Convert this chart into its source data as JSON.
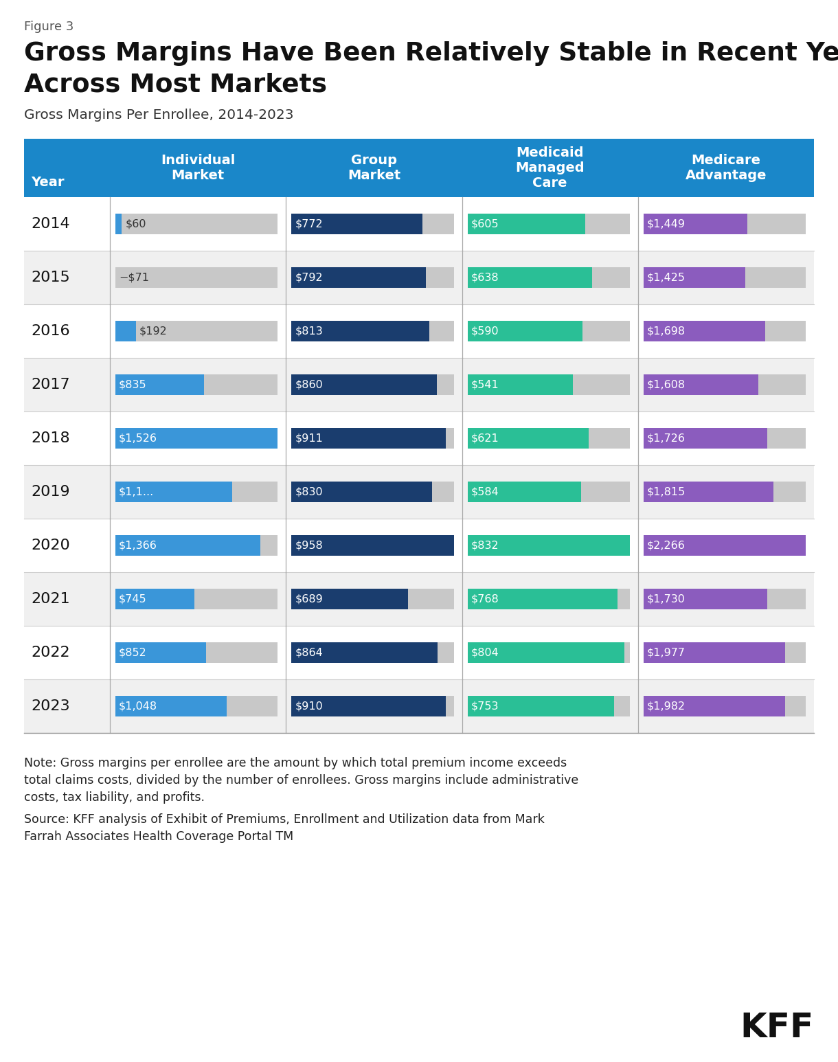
{
  "figure_label": "Figure 3",
  "title_line1": "Gross Margins Have Been Relatively Stable in Recent Years",
  "title_line2": "Across Most Markets",
  "subtitle": "Gross Margins Per Enrolllee, 2014-2023",
  "subtitle_real": "Gross Margins Per Enrollee, 2014-2023",
  "header_bg_color": "#1a87c9",
  "years": [
    2014,
    2015,
    2016,
    2017,
    2018,
    2019,
    2020,
    2021,
    2022,
    2023
  ],
  "individual_market": [
    60,
    -71,
    192,
    835,
    1526,
    1100,
    1366,
    745,
    852,
    1048
  ],
  "individual_market_labels": [
    "$60",
    "−$71",
    "$192",
    "$835",
    "$1,526",
    "$1,1...",
    "$1,366",
    "$745",
    "$852",
    "$1,048"
  ],
  "group_market": [
    772,
    792,
    813,
    860,
    911,
    830,
    958,
    689,
    864,
    910
  ],
  "group_market_labels": [
    "$772",
    "$792",
    "$813",
    "$860",
    "$911",
    "$830",
    "$958",
    "$689",
    "$864",
    "$910"
  ],
  "medicaid_mc": [
    605,
    638,
    590,
    541,
    621,
    584,
    832,
    768,
    804,
    753
  ],
  "medicaid_mc_labels": [
    "$605",
    "$638",
    "$590",
    "$541",
    "$621",
    "$584",
    "$832",
    "$768",
    "$804",
    "$753"
  ],
  "medicare_adv": [
    1449,
    1425,
    1698,
    1608,
    1726,
    1815,
    2266,
    1730,
    1977,
    1982
  ],
  "medicare_adv_labels": [
    "$1,449",
    "$1,425",
    "$1,698",
    "$1,608",
    "$1,726",
    "$1,815",
    "$2,266",
    "$1,730",
    "$1,977",
    "$1,982"
  ],
  "color_individual": "#3a96d9",
  "color_group": "#1a3d6e",
  "color_medicaid": "#2abf96",
  "color_medicare": "#8b5cbe",
  "color_bg_bar": "#c8c8c8",
  "color_row_odd": "#ffffff",
  "color_row_even": "#f0f0f0",
  "col_max_values": [
    1526,
    958,
    832,
    2266
  ],
  "note_text": "Note: Gross margins per enrollee are the amount by which total premium income exceeds\ntotal claims costs, divided by the number of enrollees. Gross margins include administrative\ncosts, tax liability, and profits.",
  "source_text": "Source: KFF analysis of Exhibit of Premiums, Enrollment and Utilization data from Mark\nFarrah Associates Health Coverage Portal TM",
  "background_color": "#ffffff"
}
